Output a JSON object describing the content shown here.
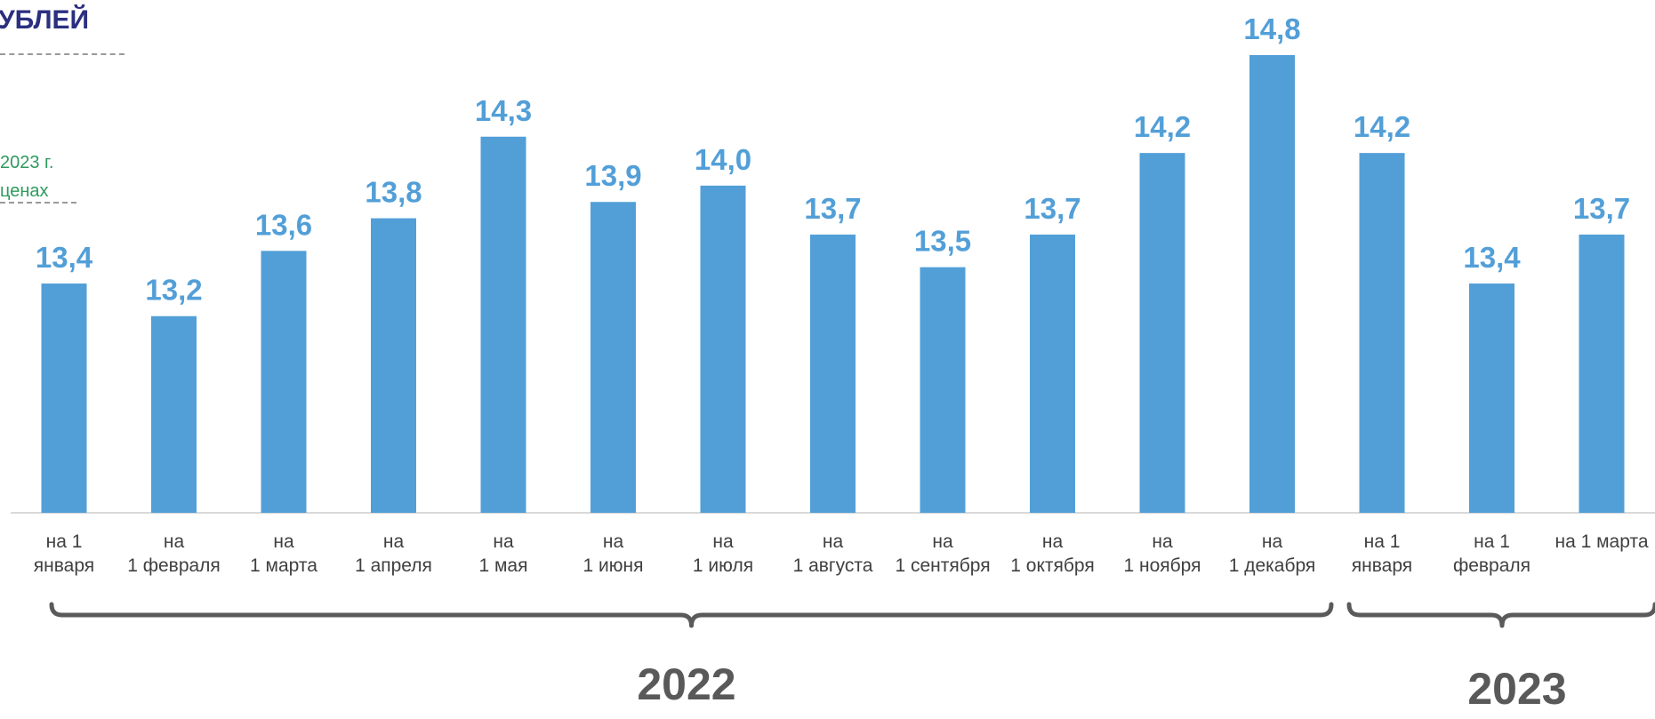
{
  "header": {
    "title_fragment": "УБЛЕЙ",
    "note_line1": "2023 г.",
    "note_line2": "ценах"
  },
  "colors": {
    "bar": "#529fd8",
    "value_label": "#529fd8",
    "tick_label": "#404040",
    "axis": "#d9d9d9",
    "bracket": "#5a5a5a",
    "year_label": "#595959",
    "title": "#2b2f80",
    "note": "#2e9a5e"
  },
  "chart_data": {
    "type": "bar",
    "categories": [
      [
        "на 1",
        "января"
      ],
      [
        "на",
        "1 февраля"
      ],
      [
        "на",
        "1 марта"
      ],
      [
        "на",
        "1 апреля"
      ],
      [
        "на",
        "1 мая"
      ],
      [
        "на",
        "1 июня"
      ],
      [
        "на",
        "1 июля"
      ],
      [
        "на",
        "1 августа"
      ],
      [
        "на",
        "1 сентября"
      ],
      [
        "на",
        "1 октября"
      ],
      [
        "на",
        "1 ноября"
      ],
      [
        "на",
        "1 декабря"
      ],
      [
        "на 1",
        "января"
      ],
      [
        "на 1",
        "февраля"
      ],
      [
        "на 1 марта"
      ]
    ],
    "values": [
      13.4,
      13.2,
      13.6,
      13.8,
      14.3,
      13.9,
      14.0,
      13.7,
      13.5,
      13.7,
      14.2,
      14.8,
      14.2,
      13.4,
      13.7
    ],
    "value_labels": [
      "13,4",
      "13,2",
      "13,6",
      "13,8",
      "14,3",
      "13,9",
      "14,0",
      "13,7",
      "13,5",
      "13,7",
      "14,2",
      "14,8",
      "14,2",
      "13,4",
      "13,7"
    ],
    "groups": [
      {
        "label": "2022",
        "from": 0,
        "to": 11
      },
      {
        "label": "2023",
        "from": 12,
        "to": 14
      }
    ],
    "title": "",
    "xlabel": "",
    "ylabel": "",
    "grid": false,
    "legend": "none"
  }
}
